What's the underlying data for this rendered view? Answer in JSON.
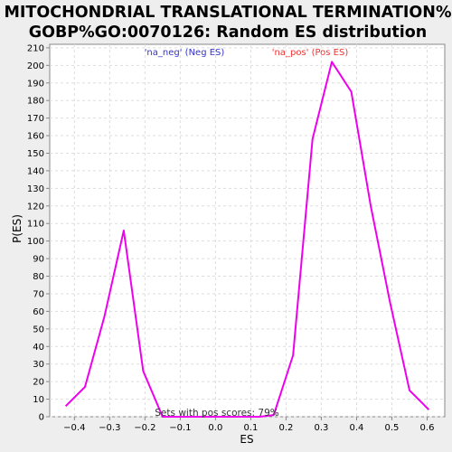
{
  "chart_data": {
    "type": "line",
    "title_lines": [
      "MITOCHONDRIAL TRANSLATIONAL TERMINATION%",
      "GOBP%GO:0070126: Random ES distribution"
    ],
    "xlabel": "ES",
    "ylabel": "P(ES)",
    "xlim": [
      -0.47,
      0.65
    ],
    "ylim": [
      0,
      212
    ],
    "xticks": [
      -0.4,
      -0.3,
      -0.2,
      -0.1,
      0.0,
      0.1,
      0.2,
      0.3,
      0.4,
      0.5,
      0.6
    ],
    "xtick_labels": [
      "−0.4",
      "−0.3",
      "−0.2",
      "−0.1",
      "0.0",
      "0.1",
      "0.2",
      "0.3",
      "0.4",
      "0.5",
      "0.6"
    ],
    "yticks": [
      0,
      10,
      20,
      30,
      40,
      50,
      60,
      70,
      80,
      90,
      100,
      110,
      120,
      130,
      140,
      150,
      160,
      170,
      180,
      190,
      200,
      210
    ],
    "grid": true,
    "series": [
      {
        "color": "#ee00ee",
        "x": [
          -0.425,
          -0.37,
          -0.315,
          -0.26,
          -0.205,
          -0.15,
          -0.095,
          -0.04,
          0.015,
          0.07,
          0.125,
          0.165,
          0.22,
          0.275,
          0.33,
          0.385,
          0.44,
          0.495,
          0.55,
          0.605
        ],
        "y": [
          6,
          17,
          57,
          106,
          26,
          0,
          0,
          0,
          0,
          0,
          0,
          1,
          35,
          158,
          202,
          185,
          120,
          65,
          15,
          4
        ]
      }
    ],
    "legend": {
      "neg_label": "'na_neg' (Neg ES)",
      "pos_label": "'na_pos' (Pos ES)",
      "neg_color": "#3333cc",
      "pos_color": "#ee3333"
    },
    "annotation": "Sets with pos scores: 79%"
  }
}
